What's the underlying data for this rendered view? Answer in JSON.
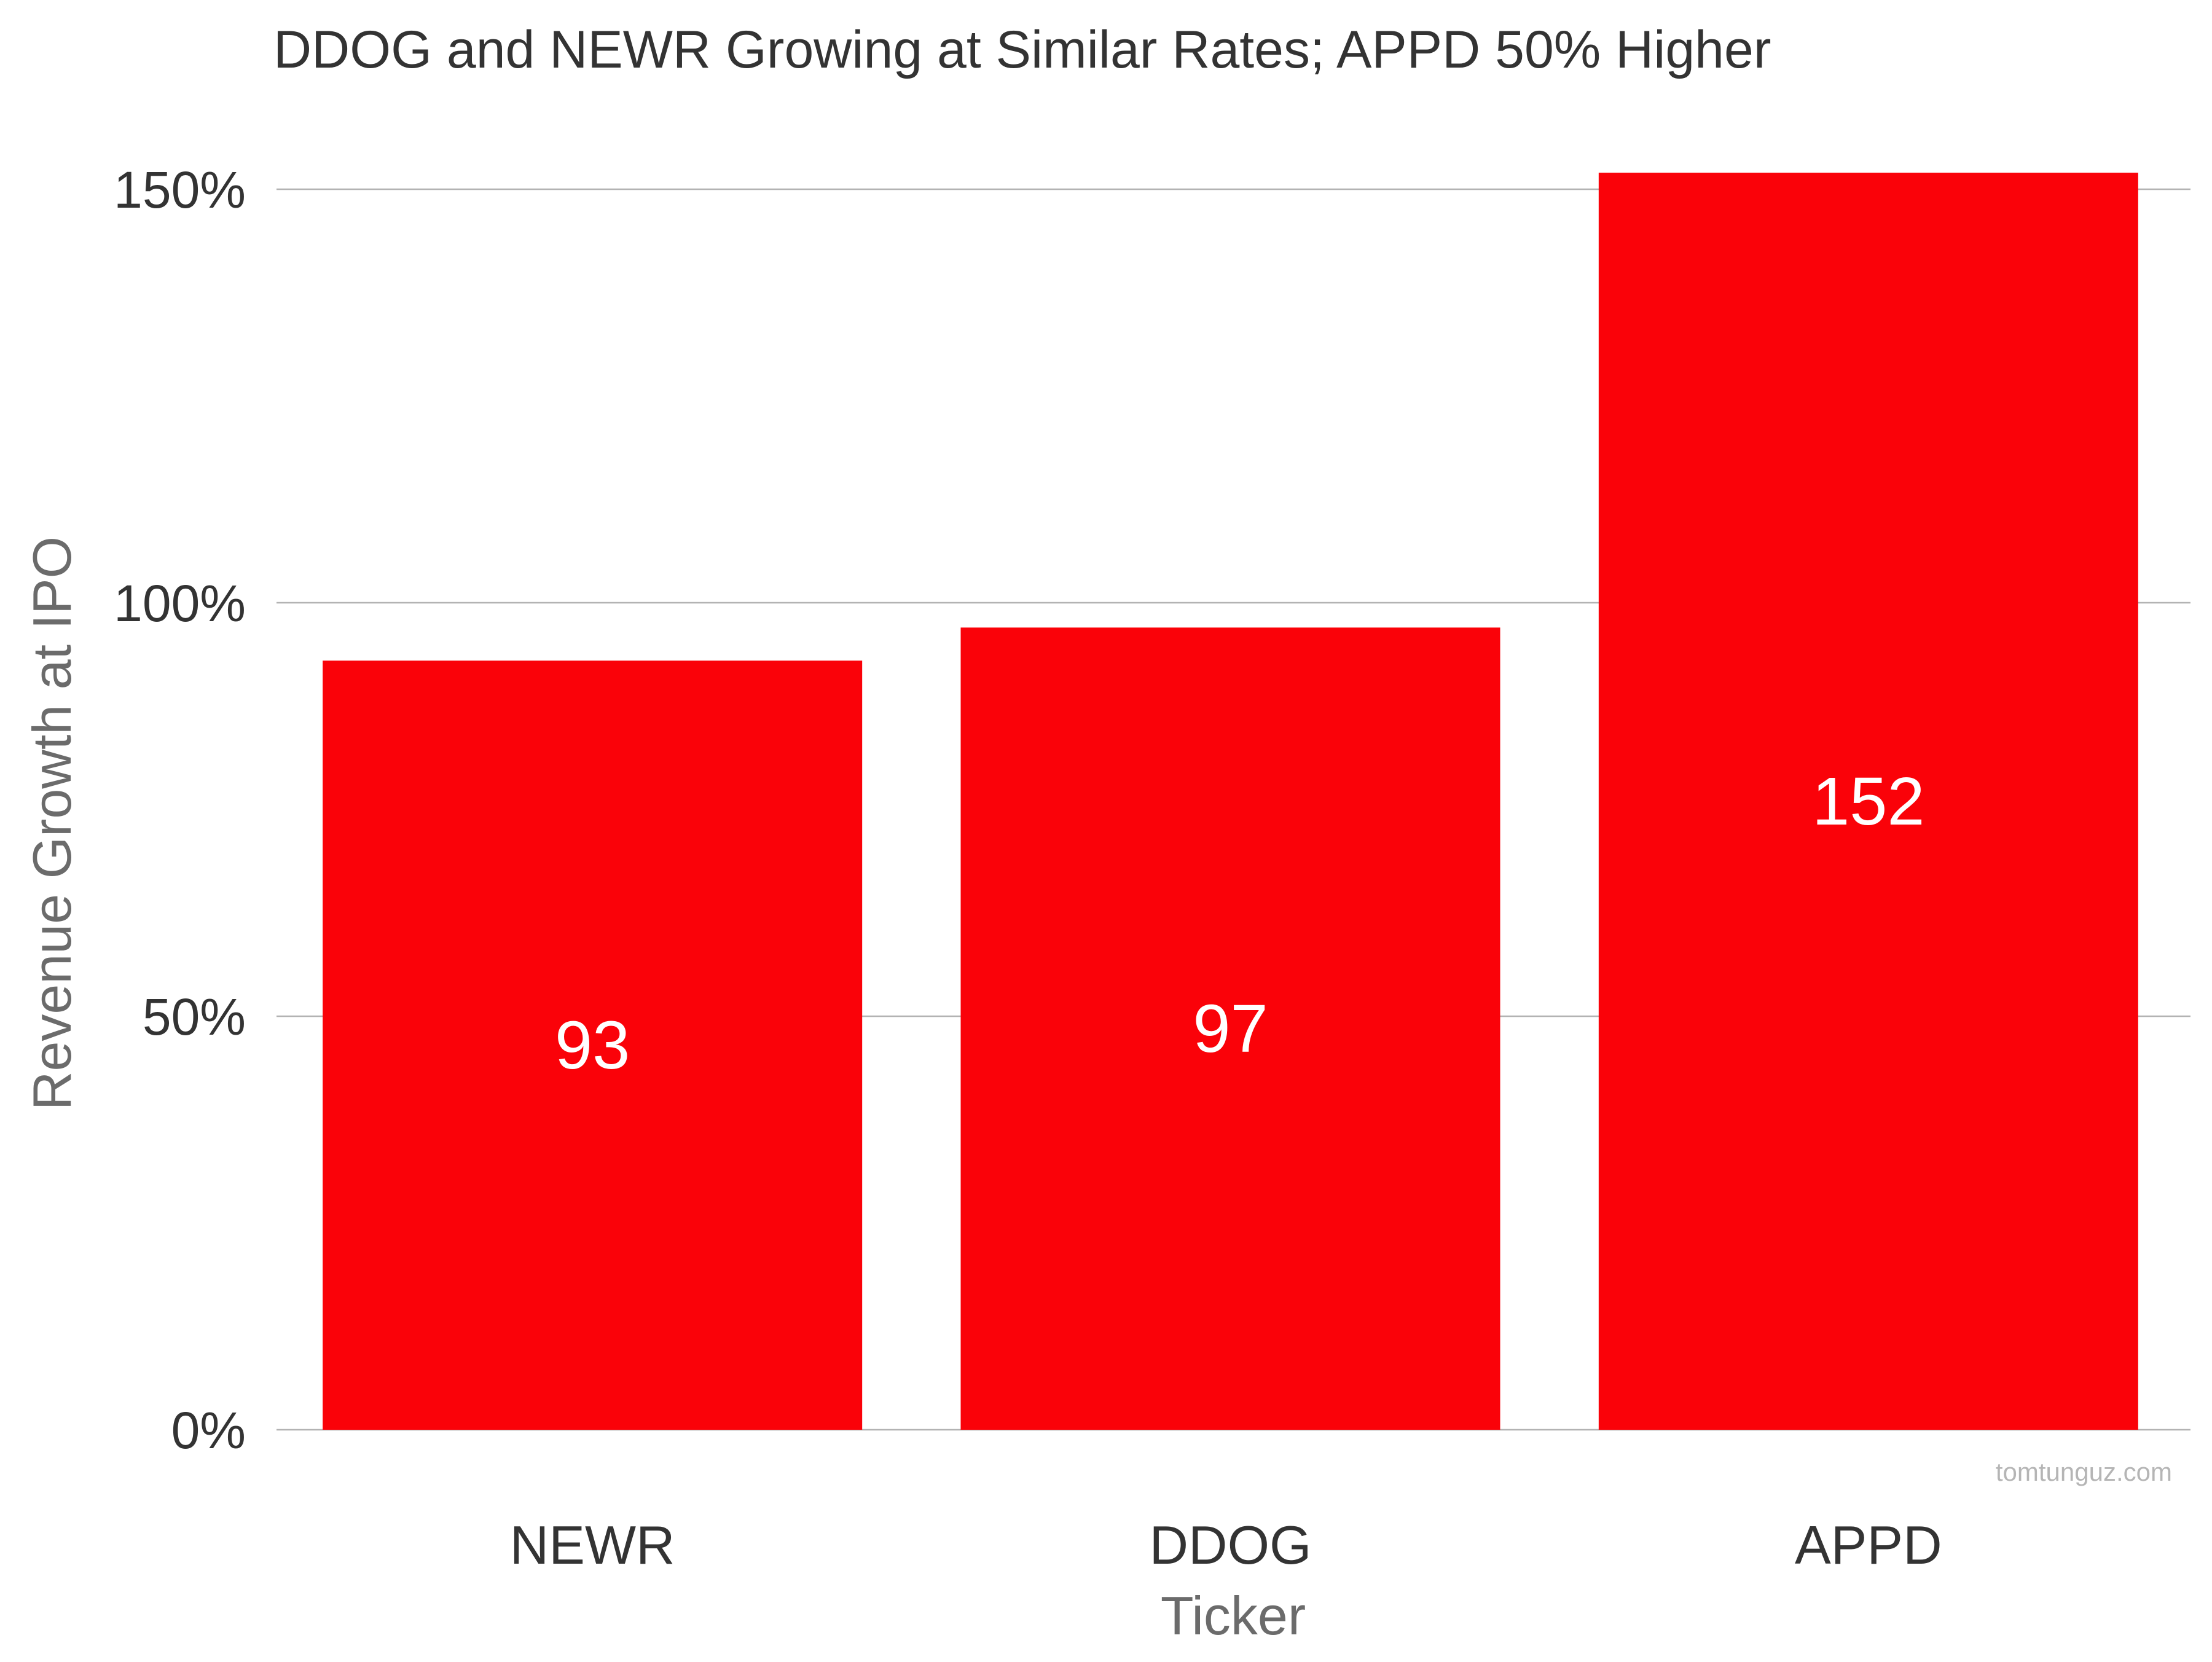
{
  "chart_data": {
    "type": "bar",
    "title": "DDOG and NEWR Growing at Similar Rates; APPD 50% Higher",
    "xlabel": "Ticker",
    "ylabel": "Revenue Growth at IPO",
    "categories": [
      "NEWR",
      "DDOG",
      "APPD"
    ],
    "values": [
      93,
      97,
      152
    ],
    "data_labels": [
      "93",
      "97",
      "152"
    ],
    "ylim": [
      0,
      160
    ],
    "yticks": [
      0,
      50,
      100,
      150
    ],
    "ytick_labels": [
      "0%",
      "50%",
      "100%",
      "150%"
    ],
    "grid": true,
    "bar_color": "#fa0209",
    "label_color": "#ffffff",
    "watermark": "tomtunguz.com"
  }
}
